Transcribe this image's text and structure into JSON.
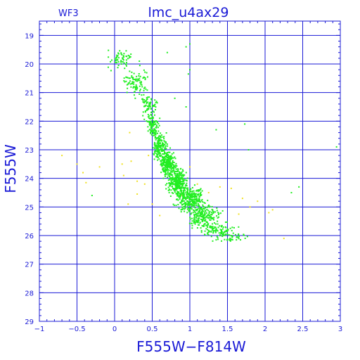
{
  "chart_data": {
    "type": "scatter",
    "title": "lmc_u4ax29",
    "panel_label": "WF3",
    "xlabel": "F555W−F814W",
    "ylabel": "F555W",
    "xlim": [
      -1,
      3
    ],
    "ylim": [
      29,
      18.5
    ],
    "y_inverted": true,
    "grid": true,
    "x_ticks": [
      -1,
      -0.5,
      0,
      0.5,
      1,
      1.5,
      2,
      2.5,
      3
    ],
    "x_tick_labels": [
      "−1",
      "−0.5",
      "0",
      "0.5",
      "1",
      "1.5",
      "2",
      "2.5",
      "3"
    ],
    "y_ticks": [
      19,
      20,
      21,
      22,
      23,
      24,
      25,
      26,
      27,
      28,
      29
    ],
    "y_tick_labels": [
      "19",
      "20",
      "21",
      "22",
      "23",
      "24",
      "25",
      "26",
      "27",
      "28",
      "29"
    ],
    "colors": {
      "axes": "#1a1ad6",
      "main": "#22ee22",
      "secondary": "#f0e020"
    },
    "series": [
      {
        "color": "#22ee22",
        "sequence": [
          {
            "x": 0.1,
            "y": 19.8,
            "xs": 0.12,
            "ys": 0.25,
            "n": 60
          },
          {
            "x": 0.3,
            "y": 20.6,
            "xs": 0.12,
            "ys": 0.3,
            "n": 90
          },
          {
            "x": 0.45,
            "y": 21.5,
            "xs": 0.08,
            "ys": 0.3,
            "n": 80
          },
          {
            "x": 0.52,
            "y": 22.2,
            "xs": 0.05,
            "ys": 0.25,
            "n": 90
          },
          {
            "x": 0.6,
            "y": 22.9,
            "xs": 0.06,
            "ys": 0.3,
            "n": 170
          },
          {
            "x": 0.7,
            "y": 23.5,
            "xs": 0.07,
            "ys": 0.3,
            "n": 260
          },
          {
            "x": 0.83,
            "y": 24.1,
            "xs": 0.09,
            "ys": 0.3,
            "n": 300
          },
          {
            "x": 1.0,
            "y": 24.7,
            "xs": 0.12,
            "ys": 0.3,
            "n": 280
          },
          {
            "x": 1.18,
            "y": 25.3,
            "xs": 0.14,
            "ys": 0.3,
            "n": 220
          },
          {
            "x": 1.4,
            "y": 25.85,
            "xs": 0.14,
            "ys": 0.2,
            "n": 110
          },
          {
            "x": 1.6,
            "y": 26.1,
            "xs": 0.1,
            "ys": 0.12,
            "n": 30
          }
        ],
        "stragglers": [
          {
            "x": 0.7,
            "y": 19.6
          },
          {
            "x": 0.95,
            "y": 19.4
          },
          {
            "x": 1.0,
            "y": 19.3
          },
          {
            "x": 1.0,
            "y": 20.2
          },
          {
            "x": 0.98,
            "y": 20.35
          },
          {
            "x": 0.95,
            "y": 21.5
          },
          {
            "x": 1.35,
            "y": 22.3
          },
          {
            "x": 1.73,
            "y": 22.1
          },
          {
            "x": 1.78,
            "y": 23.0
          },
          {
            "x": 2.95,
            "y": 22.9
          },
          {
            "x": 2.45,
            "y": 24.3
          },
          {
            "x": 2.35,
            "y": 24.5
          },
          {
            "x": -0.3,
            "y": 24.6
          },
          {
            "x": 0.6,
            "y": 21.9
          },
          {
            "x": 0.8,
            "y": 21.2
          }
        ]
      },
      {
        "color": "#f0e020",
        "points": [
          {
            "x": -0.7,
            "y": 23.2
          },
          {
            "x": -0.5,
            "y": 23.5
          },
          {
            "x": -0.42,
            "y": 23.8
          },
          {
            "x": -0.38,
            "y": 24.15
          },
          {
            "x": -0.2,
            "y": 23.6
          },
          {
            "x": 0.1,
            "y": 23.5
          },
          {
            "x": 0.22,
            "y": 23.4
          },
          {
            "x": 0.12,
            "y": 23.9
          },
          {
            "x": 0.3,
            "y": 24.1
          },
          {
            "x": 0.3,
            "y": 24.55
          },
          {
            "x": 0.18,
            "y": 24.9
          },
          {
            "x": 0.4,
            "y": 24.2
          },
          {
            "x": 0.5,
            "y": 24.9
          },
          {
            "x": 0.6,
            "y": 25.3
          },
          {
            "x": 0.45,
            "y": 23.2
          },
          {
            "x": 0.9,
            "y": 24.6
          },
          {
            "x": 1.1,
            "y": 24.2
          },
          {
            "x": 1.25,
            "y": 24.5
          },
          {
            "x": 1.4,
            "y": 24.3
          },
          {
            "x": 1.55,
            "y": 24.35
          },
          {
            "x": 1.7,
            "y": 24.7
          },
          {
            "x": 1.8,
            "y": 25.0
          },
          {
            "x": 1.65,
            "y": 25.25
          },
          {
            "x": 2.05,
            "y": 25.2
          },
          {
            "x": 2.1,
            "y": 25.1
          },
          {
            "x": 2.25,
            "y": 26.1
          },
          {
            "x": 1.9,
            "y": 24.8
          },
          {
            "x": 0.2,
            "y": 22.4
          },
          {
            "x": 0.5,
            "y": 22.1
          },
          {
            "x": 1.0,
            "y": 23.6
          }
        ]
      }
    ]
  }
}
